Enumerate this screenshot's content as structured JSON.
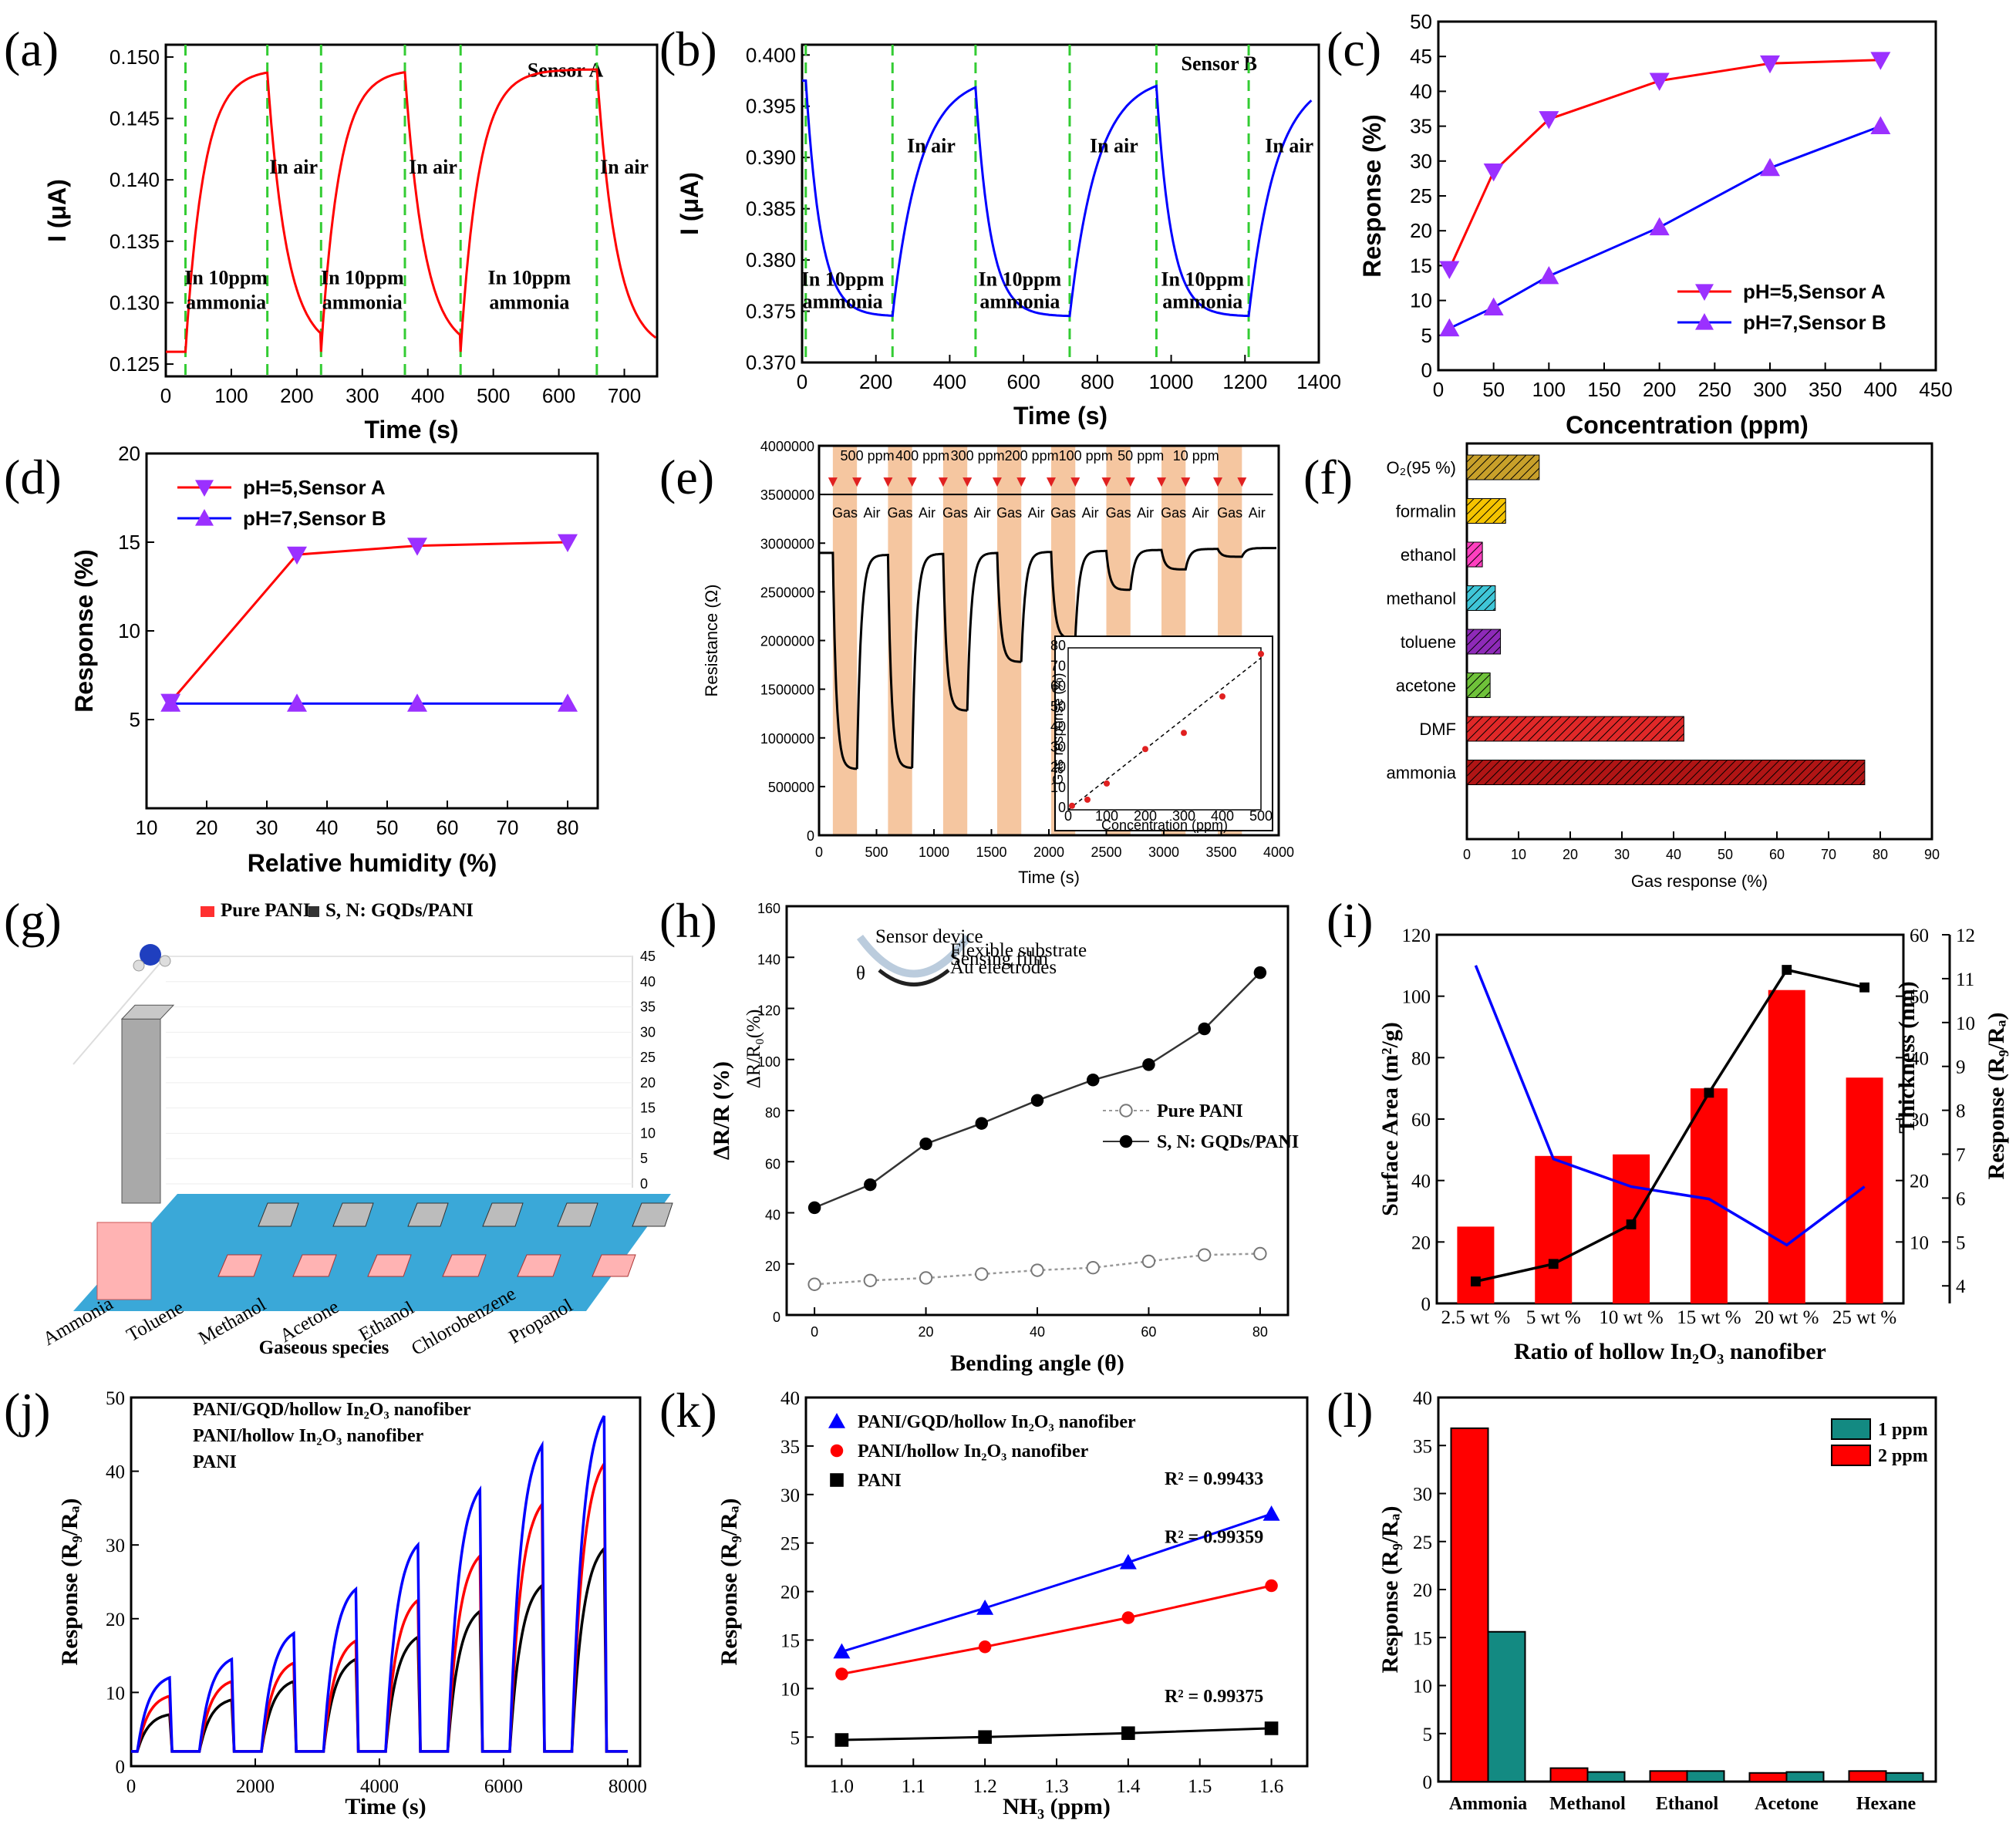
{
  "figure": {
    "panel_labels": [
      "(a)",
      "(b)",
      "(c)",
      "(d)",
      "(e)",
      "(f)",
      "(g)",
      "(h)",
      "(i)",
      "(j)",
      "(k)",
      "(l)"
    ]
  },
  "chart_data": [
    {
      "id": "a",
      "type": "line",
      "title": "Sensor A",
      "xlabel": "Time (s)",
      "ylabel": "I (μA)",
      "xlim": [
        0,
        750
      ],
      "ylim": [
        0.124,
        0.151
      ],
      "xticks": [
        0,
        100,
        200,
        300,
        400,
        500,
        600,
        700
      ],
      "yticks": [
        0.125,
        0.13,
        0.135,
        0.14,
        0.145,
        0.15
      ],
      "ytick_labels": [
        "0.125",
        "0.130",
        "0.135",
        "0.140",
        "0.145",
        "0.150"
      ],
      "color": "#ff0000",
      "gas_on": [
        30,
        237,
        450
      ],
      "gas_off": [
        155,
        365,
        658
      ],
      "baseline": 0.126,
      "peak": 0.149,
      "annotations": [
        {
          "text": "In  10ppm",
          "x": 92,
          "y": 0.1315
        },
        {
          "text": "ammonia",
          "x": 92,
          "y": 0.1295
        },
        {
          "text": "In  10ppm",
          "x": 300,
          "y": 0.1315
        },
        {
          "text": "ammonia",
          "x": 300,
          "y": 0.1295
        },
        {
          "text": "In  10ppm",
          "x": 555,
          "y": 0.1315
        },
        {
          "text": "ammonia",
          "x": 555,
          "y": 0.1295
        },
        {
          "text": "In  air",
          "x": 195,
          "y": 0.1405
        },
        {
          "text": "In  air",
          "x": 408,
          "y": 0.1405
        },
        {
          "text": "In  air",
          "x": 700,
          "y": 0.1405
        }
      ]
    },
    {
      "id": "b",
      "type": "line",
      "title": "Sensor B",
      "xlabel": "Time (s)",
      "ylabel": "I (μA)",
      "xlim": [
        0,
        1400
      ],
      "ylim": [
        0.37,
        0.401
      ],
      "xticks": [
        0,
        200,
        400,
        600,
        800,
        1000,
        1200,
        1400
      ],
      "yticks": [
        0.37,
        0.375,
        0.38,
        0.385,
        0.39,
        0.395,
        0.4
      ],
      "ytick_labels": [
        "0.370",
        "0.375",
        "0.380",
        "0.385",
        "0.390",
        "0.395",
        "0.400"
      ],
      "color": "#0000ff",
      "gas_on": [
        10,
        470,
        960
      ],
      "gas_off": [
        245,
        725,
        1210
      ],
      "baseline": 0.3975,
      "low": 0.3745,
      "annotations": [
        {
          "text": "In  10ppm",
          "x": 110,
          "y": 0.3775
        },
        {
          "text": "ammonia",
          "x": 110,
          "y": 0.3753
        },
        {
          "text": "In  10ppm",
          "x": 590,
          "y": 0.3775
        },
        {
          "text": "ammonia",
          "x": 590,
          "y": 0.3753
        },
        {
          "text": "In  10ppm",
          "x": 1085,
          "y": 0.3775
        },
        {
          "text": "ammonia",
          "x": 1085,
          "y": 0.3753
        },
        {
          "text": "In  air",
          "x": 350,
          "y": 0.3905
        },
        {
          "text": "In  air",
          "x": 845,
          "y": 0.3905
        },
        {
          "text": "In  air",
          "x": 1320,
          "y": 0.3905
        }
      ]
    },
    {
      "id": "c",
      "type": "line",
      "xlabel": "Concentration (ppm)",
      "ylabel": "Response (%)",
      "xlim": [
        0,
        450
      ],
      "ylim": [
        0,
        50
      ],
      "xticks": [
        0,
        50,
        100,
        150,
        200,
        250,
        300,
        350,
        400,
        450
      ],
      "yticks": [
        0,
        5,
        10,
        15,
        20,
        25,
        30,
        35,
        40,
        45,
        50
      ],
      "series": [
        {
          "name": "pH=5,Sensor A",
          "color": "#ff0000",
          "marker": "tri-down",
          "x": [
            10,
            50,
            100,
            200,
            300,
            400
          ],
          "y": [
            14.5,
            28.5,
            36,
            41.5,
            44,
            44.5
          ]
        },
        {
          "name": "pH=7,Sensor B",
          "color": "#0000ff",
          "marker": "tri-up",
          "x": [
            10,
            50,
            100,
            200,
            300,
            400
          ],
          "y": [
            6,
            9,
            13.5,
            20.5,
            29,
            35
          ]
        }
      ]
    },
    {
      "id": "d",
      "type": "line",
      "xlabel": "Relative humidity (%)",
      "ylabel": "Response (%)",
      "xlim": [
        10,
        85
      ],
      "ylim": [
        0,
        20
      ],
      "xticks": [
        10,
        20,
        30,
        40,
        50,
        60,
        70,
        80
      ],
      "yticks": [
        5,
        10,
        15,
        20
      ],
      "series": [
        {
          "name": "pH=5,Sensor A",
          "color": "#ff0000",
          "marker": "tri-down",
          "x": [
            14,
            35,
            55,
            80
          ],
          "y": [
            6,
            14.3,
            14.8,
            15
          ]
        },
        {
          "name": "pH=7,Sensor B",
          "color": "#0000ff",
          "marker": "tri-up",
          "x": [
            14,
            35,
            55,
            80
          ],
          "y": [
            5.9,
            5.9,
            5.9,
            5.9
          ]
        }
      ]
    },
    {
      "id": "e",
      "type": "line",
      "xlabel": "Time (s)",
      "ylabel": "Resistance (Ω)",
      "xlim": [
        0,
        4000
      ],
      "ylim": [
        0,
        4000000
      ],
      "xticks": [
        0,
        500,
        1000,
        1500,
        2000,
        2500,
        3000,
        3500,
        4000
      ],
      "yticks": [
        0,
        500000,
        1000000,
        1500000,
        2000000,
        2500000,
        3000000,
        3500000,
        4000000
      ],
      "ytick_labels": [
        "0",
        "500000",
        "1000000",
        "1500000",
        "2000000",
        "2500000",
        "3000000",
        "3500000",
        "4000000"
      ],
      "concentrations": [
        "500 ppm",
        "400 ppm",
        "300 ppm",
        "200 ppm",
        "100 ppm",
        "50 ppm",
        "10 ppm"
      ],
      "gas_air_labels": [
        "Gas",
        "Air"
      ],
      "gas_start": [
        120,
        600,
        1080,
        1550,
        2020,
        2500,
        2980,
        3470
      ],
      "gas_len": 210,
      "minima": [
        680000,
        690000,
        1280000,
        1780000,
        2020000,
        2520000,
        2730000,
        2860000
      ],
      "inset": {
        "xlabel": "Concentration (ppm)",
        "ylabel": "Gas response (%)",
        "xlim": [
          0,
          500
        ],
        "ylim": [
          0,
          80
        ],
        "xticks": [
          0,
          100,
          200,
          300,
          400,
          500
        ],
        "yticks": [
          0,
          10,
          20,
          30,
          40,
          50,
          60,
          70,
          80
        ],
        "x": [
          10,
          50,
          100,
          200,
          300,
          400,
          500
        ],
        "y": [
          2,
          5,
          13,
          30,
          38,
          56,
          77
        ]
      }
    },
    {
      "id": "f",
      "type": "bar",
      "xlabel": "Gas response (%)",
      "xlim": [
        0,
        90
      ],
      "xticks": [
        0,
        10,
        20,
        30,
        40,
        50,
        60,
        70,
        80,
        90
      ],
      "categories": [
        "O₂(95 %)",
        "formalin",
        "ethanol",
        "methanol",
        "toluene",
        "acetone",
        "DMF",
        "ammonia"
      ],
      "values": [
        14,
        7.5,
        3,
        5.5,
        6.5,
        4.5,
        42,
        77
      ],
      "colors": [
        "#c8a02a",
        "#f5c400",
        "#ff3fbf",
        "#3fc6d8",
        "#8e2ab8",
        "#6fc23a",
        "#e02828",
        "#b01515"
      ]
    },
    {
      "id": "g",
      "type": "bar",
      "xlabel": "Gaseous species",
      "categories": [
        "Ammonia",
        "Toluene",
        "Methanol",
        "Acetone",
        "Ethanol",
        "Chlorobenzene",
        "Propanol"
      ],
      "legend": [
        "Pure PANI",
        "S, N: GQDs/PANI"
      ],
      "series": [
        {
          "name": "Pure PANI",
          "color": "#ffb3b3",
          "values": [
            8,
            0.3,
            0.3,
            0.3,
            0.3,
            0.3,
            0.3
          ]
        },
        {
          "name": "S, N: GQDs/PANI",
          "color": "#a9a9a9",
          "values": [
            41,
            0.3,
            0.3,
            0.3,
            0.3,
            0.3,
            0.3
          ]
        }
      ],
      "zticks": [
        "0",
        "5",
        "10",
        "15",
        "20",
        "25",
        "30",
        "35",
        "40",
        "45"
      ]
    },
    {
      "id": "h",
      "type": "line",
      "xlabel": "Bending angle (θ)",
      "ylabel": "ΔR/R (%)",
      "secondary_ylabel": "ΔR/R₀(%)",
      "xlim": [
        -5,
        85
      ],
      "ylim": [
        0,
        160
      ],
      "xticks": [
        0,
        20,
        40,
        60,
        80
      ],
      "yticks": [
        0,
        20,
        40,
        60,
        80,
        100,
        120,
        140,
        160
      ],
      "inset_labels": [
        "Sensor device",
        "Flexible substrate",
        "Sensing film",
        "Au electrodes",
        "θ"
      ],
      "series": [
        {
          "name": "Pure PANI",
          "color": "#999999",
          "marker": "open-circle",
          "x": [
            0,
            10,
            20,
            30,
            40,
            50,
            60,
            70,
            80
          ],
          "y": [
            12,
            13.5,
            14.5,
            16,
            17.5,
            18.5,
            21,
            23.5,
            24
          ]
        },
        {
          "name": "S, N: GQDs/PANI",
          "color": "#333333",
          "marker": "filled-circle",
          "x": [
            0,
            10,
            20,
            30,
            40,
            50,
            60,
            70,
            80
          ],
          "y": [
            42,
            51,
            67,
            75,
            84,
            92,
            98,
            112,
            134
          ]
        }
      ]
    },
    {
      "id": "i",
      "type": "bar",
      "xlabel": "Ratio of hollow In₂O₃ nanofiber",
      "ylabel": "Surface Area (m²/g)",
      "ylabel2": "Thickness (nm)",
      "ylabel3": "Response (R₉/Rₐ)",
      "categories": [
        "2.5 wt %",
        "5 wt %",
        "10 wt %",
        "15 wt %",
        "20 wt %",
        "25 wt %"
      ],
      "ylim": [
        0,
        120
      ],
      "yticks": [
        0,
        20,
        40,
        60,
        80,
        100,
        120
      ],
      "y2lim": [
        0,
        60
      ],
      "y2ticks": [
        10,
        20,
        30,
        40,
        50,
        60
      ],
      "y3lim": [
        3.6,
        12
      ],
      "y3ticks": [
        4,
        5,
        6,
        7,
        8,
        9,
        10,
        11,
        12
      ],
      "series": [
        {
          "name": "Surface Area",
          "color": "#ff0000",
          "values": [
            25,
            48,
            48.5,
            70,
            102,
            73.5
          ]
        },
        {
          "name": "Thickness",
          "color": "#0000ff",
          "values": [
            55,
            23.5,
            19,
            17,
            9.5,
            19
          ]
        },
        {
          "name": "Response",
          "color": "#000000",
          "values": [
            4.1,
            4.5,
            5.4,
            8.4,
            11.2,
            10.8
          ]
        }
      ]
    },
    {
      "id": "j",
      "type": "line",
      "xlabel": "Time (s)",
      "ylabel": "Response (R₉/Rₐ)",
      "xlim": [
        0,
        8200
      ],
      "ylim": [
        0,
        50
      ],
      "xticks": [
        0,
        2000,
        4000,
        6000,
        8000
      ],
      "yticks": [
        0,
        10,
        20,
        30,
        40,
        50
      ],
      "pulse_start": [
        100,
        1100,
        2100,
        3100,
        4100,
        5100,
        6100,
        7100
      ],
      "pulse_len": 520,
      "series": [
        {
          "name": "PANI/GQD/hollow In₂O₃ nanofiber",
          "color": "#0000ff",
          "peaks": [
            12,
            14.5,
            18,
            24,
            30,
            37.5,
            43.5,
            47.5
          ]
        },
        {
          "name": "PANI/hollow In₂O₃ nanofiber",
          "color": "#ff0000",
          "peaks": [
            9.5,
            11.5,
            14,
            17,
            22.5,
            28.5,
            35.5,
            41
          ]
        },
        {
          "name": "PANI",
          "color": "#000000",
          "peaks": [
            7,
            9,
            11.5,
            14.5,
            17.5,
            21,
            24.5,
            29.5
          ]
        }
      ]
    },
    {
      "id": "k",
      "type": "scatter",
      "xlabel": "NH₃ (ppm)",
      "ylabel": "Response (R₉/Rₐ)",
      "xlim": [
        0.95,
        1.65
      ],
      "ylim": [
        2,
        40
      ],
      "xticks": [
        1.0,
        1.1,
        1.2,
        1.3,
        1.4,
        1.5,
        1.6
      ],
      "yticks": [
        5,
        10,
        15,
        20,
        25,
        30,
        35,
        40
      ],
      "r2": [
        "R² = 0.99433",
        "R² = 0.99359",
        "R² = 0.99375"
      ],
      "series": [
        {
          "name": "PANI/GQD/hollow In₂O₃ nanofiber",
          "color": "#0000ff",
          "marker": "tri-up",
          "x": [
            1.0,
            1.2,
            1.4,
            1.6
          ],
          "y": [
            13.8,
            18.3,
            23,
            28
          ]
        },
        {
          "name": "PANI/hollow In₂O₃ nanofiber",
          "color": "#ff0000",
          "marker": "circle",
          "x": [
            1.0,
            1.2,
            1.4,
            1.6
          ],
          "y": [
            11.5,
            14.3,
            17.3,
            20.6
          ]
        },
        {
          "name": "PANI",
          "color": "#000000",
          "marker": "square",
          "x": [
            1.0,
            1.2,
            1.4,
            1.6
          ],
          "y": [
            4.7,
            5,
            5.4,
            5.9
          ]
        }
      ]
    },
    {
      "id": "l",
      "type": "bar",
      "ylabel": "Response (R₉/Rₐ)",
      "ylim": [
        0,
        40
      ],
      "yticks": [
        0,
        5,
        10,
        15,
        20,
        25,
        30,
        35,
        40
      ],
      "categories": [
        "Ammonia",
        "Methanol",
        "Ethanol",
        "Acetone",
        "Hexane"
      ],
      "series": [
        {
          "name": "1 ppm",
          "color": "#138a82",
          "values": [
            15.6,
            1.0,
            1.1,
            1.0,
            0.9
          ]
        },
        {
          "name": "2 ppm",
          "color": "#ff0000",
          "values": [
            36.8,
            1.4,
            1.1,
            0.9,
            1.1
          ]
        }
      ]
    }
  ]
}
